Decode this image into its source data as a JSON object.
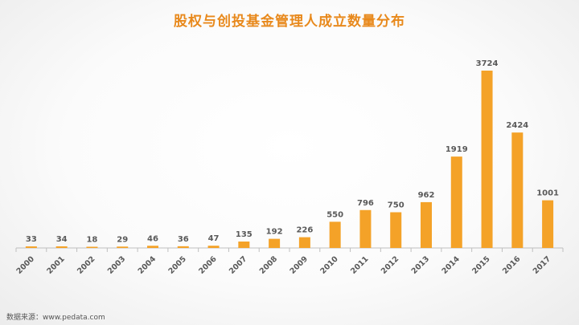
{
  "chart_data": {
    "type": "bar",
    "title": "股权与创投基金管理人成立数量分布",
    "xlabel": "",
    "ylabel": "",
    "categories": [
      "2000",
      "2001",
      "2002",
      "2003",
      "2004",
      "2005",
      "2006",
      "2007",
      "2008",
      "2009",
      "2010",
      "2011",
      "2012",
      "2013",
      "2014",
      "2015",
      "2016",
      "2017"
    ],
    "values": [
      33,
      34,
      18,
      29,
      46,
      36,
      47,
      135,
      192,
      226,
      550,
      796,
      750,
      962,
      1919,
      3724,
      2424,
      1001
    ],
    "ylim": [
      0,
      3724
    ],
    "grid": false,
    "legend": "none",
    "bar_color": "#f4a228",
    "label_color": "#595959",
    "axis_color": "#bfbfbf"
  },
  "source_text": "数据来源：www.pedata.com"
}
